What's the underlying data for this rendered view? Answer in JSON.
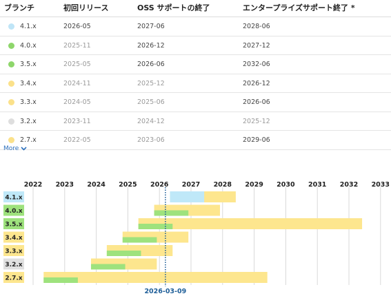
{
  "table": {
    "headers": [
      "ブランチ",
      "初回リリース",
      "OSS サポートの終了",
      "エンタープライズサポート終了 *"
    ],
    "rows": [
      {
        "branch": "4.1.x",
        "initial": "2026-05",
        "oss": "2027-06",
        "enterprise": "2028-06",
        "dot": "#bfe5f7",
        "initial_muted": false,
        "oss_muted": false,
        "ent_muted": false
      },
      {
        "branch": "4.0.x",
        "initial": "2025-11",
        "oss": "2026-12",
        "enterprise": "2027-12",
        "dot": "#8ed66b",
        "initial_muted": true,
        "oss_muted": false,
        "ent_muted": false
      },
      {
        "branch": "3.5.x",
        "initial": "2025-05",
        "oss": "2026-06",
        "enterprise": "2032-06",
        "dot": "#8ed66b",
        "initial_muted": true,
        "oss_muted": false,
        "ent_muted": false
      },
      {
        "branch": "3.4.x",
        "initial": "2024-11",
        "oss": "2025-12",
        "enterprise": "2026-12",
        "dot": "#fbe18a",
        "initial_muted": true,
        "oss_muted": true,
        "ent_muted": false
      },
      {
        "branch": "3.3.x",
        "initial": "2024-05",
        "oss": "2025-06",
        "enterprise": "2026-06",
        "dot": "#fbe18a",
        "initial_muted": true,
        "oss_muted": true,
        "ent_muted": false
      },
      {
        "branch": "3.2.x",
        "initial": "2023-11",
        "oss": "2024-12",
        "enterprise": "2025-12",
        "dot": "#dedede",
        "initial_muted": true,
        "oss_muted": true,
        "ent_muted": true
      },
      {
        "branch": "2.7.x",
        "initial": "2022-05",
        "oss": "2023-06",
        "enterprise": "2029-06",
        "dot": "#fbe18a",
        "initial_muted": true,
        "oss_muted": true,
        "ent_muted": false
      }
    ]
  },
  "more_label": "More",
  "chart_data": {
    "type": "gantt",
    "years": [
      "2022",
      "2023",
      "2024",
      "2025",
      "2026",
      "2027",
      "2028",
      "2029",
      "2030",
      "2031",
      "2032",
      "2033"
    ],
    "today": "2026-03-09",
    "colors": {
      "oss": "#9ee27d",
      "enterprise": "#fde68e",
      "upcoming": "#bfe8f8",
      "grid": "#d9d9d9",
      "today_line": "#1f5f99"
    },
    "rows": [
      {
        "branch": "4.1.x",
        "label_bg": "#bfe8f8",
        "start": "2026-05",
        "oss_end": "2027-06",
        "ent_end": "2028-06",
        "oss_color": "#bfe8f8"
      },
      {
        "branch": "4.0.x",
        "label_bg": "#9ee27d",
        "start": "2025-11",
        "oss_end": "2026-12",
        "ent_end": "2027-12",
        "oss_color": "#9ee27d"
      },
      {
        "branch": "3.5.x",
        "label_bg": "#9ee27d",
        "start": "2025-05",
        "oss_end": "2026-06",
        "ent_end": "2032-06",
        "oss_color": "#9ee27d"
      },
      {
        "branch": "3.4.x",
        "label_bg": "#fde68e",
        "start": "2024-11",
        "oss_end": "2025-12",
        "ent_end": "2026-12",
        "oss_color": "#9ee27d"
      },
      {
        "branch": "3.3.x",
        "label_bg": "#fde68e",
        "start": "2024-05",
        "oss_end": "2025-06",
        "ent_end": "2026-06",
        "oss_color": "#9ee27d"
      },
      {
        "branch": "3.2.x",
        "label_bg": "#e0e0e0",
        "start": "2023-11",
        "oss_end": "2024-12",
        "ent_end": "2025-12",
        "oss_color": "#9ee27d"
      },
      {
        "branch": "2.7.x",
        "label_bg": "#fde68e",
        "start": "2022-05",
        "oss_end": "2023-06",
        "ent_end": "2029-06",
        "oss_color": "#9ee27d"
      }
    ]
  }
}
